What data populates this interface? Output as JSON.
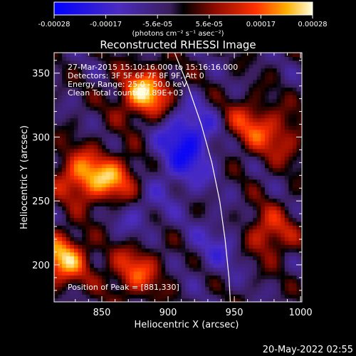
{
  "chart_data": {
    "type": "heatmap",
    "title": "Reconstructed RHESSI Image",
    "xlabel": "Heliocentric X (arcsec)",
    "ylabel": "Heliocentric Y (arcsec)",
    "xlim": [
      814,
      1001
    ],
    "ylim": [
      171,
      366
    ],
    "x_ticks": [
      "850",
      "900",
      "950",
      "1000"
    ],
    "y_ticks": [
      "200",
      "250",
      "300",
      "350"
    ],
    "colorbar": {
      "range": [
        -0.00028,
        0.00028
      ],
      "tick_labels": [
        "-0.00028",
        "-0.00017",
        "-5.6e-05",
        "5.6e-05",
        "0.00017",
        "0.00028"
      ],
      "unit_label": "(photons cm⁻² s⁻¹ asec⁻²)"
    },
    "annotations": [
      "27-Mar-2015 15:10:16.000 to 15:16:16.000",
      "Detectors: 3F 5F 6F 7F 8F 9F, Att 0",
      "Energy Range: 25.0 - 50.0 keV",
      "Clean    Total counts: 7.89E+03"
    ],
    "peak_label": "Position of Peak = [881,330]",
    "peak": [
      881,
      330
    ],
    "limb_curve": [
      [
        905,
        366
      ],
      [
        915,
        340
      ],
      [
        925,
        310
      ],
      [
        933,
        280
      ],
      [
        939,
        250
      ],
      [
        943,
        220
      ],
      [
        946,
        190
      ],
      [
        947,
        171
      ]
    ],
    "hot_sources": [
      {
        "x": 883,
        "y": 334,
        "value": 0.00028
      },
      {
        "x": 820,
        "y": 205,
        "value": 0.00026
      },
      {
        "x": 835,
        "y": 270,
        "value": 0.00022
      },
      {
        "x": 862,
        "y": 265,
        "value": 0.00021
      },
      {
        "x": 875,
        "y": 195,
        "value": 0.00018
      },
      {
        "x": 975,
        "y": 225,
        "value": 0.00017
      },
      {
        "x": 960,
        "y": 310,
        "value": 0.00015
      },
      {
        "x": 985,
        "y": 300,
        "value": 0.00012
      }
    ],
    "cold_sources": [
      {
        "x": 915,
        "y": 305,
        "value": -0.00017
      },
      {
        "x": 912,
        "y": 278,
        "value": -0.00012
      },
      {
        "x": 875,
        "y": 245,
        "value": -0.0001
      },
      {
        "x": 940,
        "y": 215,
        "value": -0.0001
      }
    ]
  },
  "footer": {
    "timestamp": "20-May-2022 02:55"
  }
}
